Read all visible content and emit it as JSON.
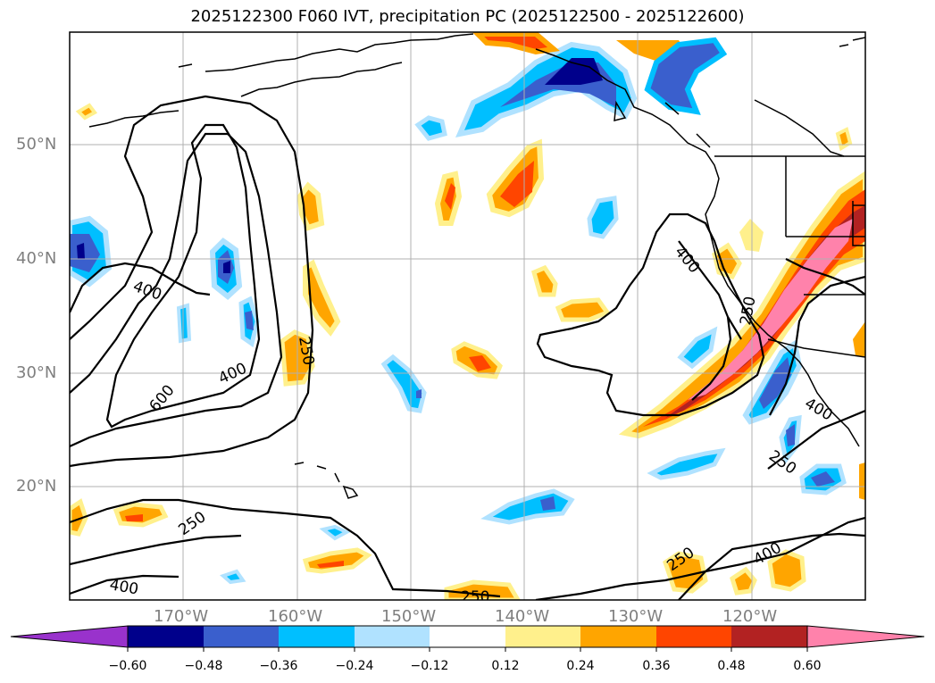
{
  "title": "2025122300 F060 IVT, precipitation PC (2025122500 - 2025122600)",
  "lat_labels": [
    "50°N",
    "40°N",
    "30°N",
    "20°N"
  ],
  "lon_labels": [
    "170°W",
    "160°W",
    "150°W",
    "140°W",
    "130°W",
    "120°W"
  ],
  "contour_labels": [
    "400",
    "400",
    "600",
    "250",
    "400",
    "250",
    "400",
    "250",
    "400",
    "250",
    "250",
    "400"
  ],
  "colorbar": {
    "ticks": [
      "−0.60",
      "−0.48",
      "−0.36",
      "−0.24",
      "−0.12",
      "0.12",
      "0.24",
      "0.36",
      "0.48",
      "0.60"
    ],
    "colors": [
      "#9932cc",
      "#00008b",
      "#3a5fcd",
      "#00bfff",
      "#b0e2ff",
      "#ffffff",
      "#fff08c",
      "#ffa500",
      "#ff4500",
      "#b22222",
      "#ff82ab"
    ]
  }
}
